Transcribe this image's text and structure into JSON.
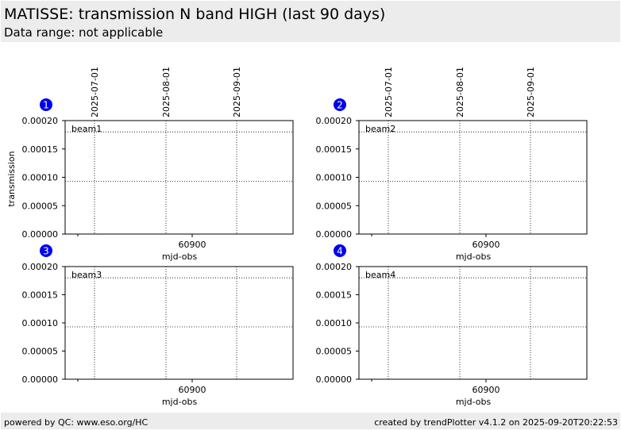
{
  "header": {
    "title": "MATISSE: transmission N band HIGH (last 90 days)",
    "subtitle": "Data range: not applicable"
  },
  "footer": {
    "left": "powered by QC: www.eso.org/HC",
    "right": "created by trendPlotter v4.1.2 on 2025-09-20T20:22:53"
  },
  "colors": {
    "badge": "#0000ee",
    "header_bg": "#ececec"
  },
  "chart_data": [
    {
      "type": "scatter",
      "badge": "1",
      "beam_label": "beam1",
      "xlabel": "mjd-obs",
      "ylabel": "transmission",
      "xlim": [
        60815,
        60911
      ],
      "ylim": [
        0,
        0.0002
      ],
      "yticks": [
        0,
        5e-05,
        0.0001,
        0.00015,
        0.0002
      ],
      "ytick_labels": [
        "0.00000",
        "0.00005",
        "0.00010",
        "0.00015",
        "0.00020"
      ],
      "xticks": [
        60900
      ],
      "xtick_labels": [
        "60900"
      ],
      "date_ticks": [
        {
          "mjd": 60857,
          "label": "2025-07-01"
        },
        {
          "mjd": 60888,
          "label": "2025-08-01"
        },
        {
          "mjd": 60919,
          "label": "2025-09-01"
        }
      ],
      "reference_lines": [
        0.00018,
        9.3e-05
      ],
      "series": []
    },
    {
      "type": "scatter",
      "badge": "2",
      "beam_label": "beam2",
      "xlabel": "mjd-obs",
      "ylabel": "",
      "xlim": [
        60815,
        60911
      ],
      "ylim": [
        0,
        0.0002
      ],
      "yticks": [
        0,
        5e-05,
        0.0001,
        0.00015,
        0.0002
      ],
      "ytick_labels": [
        "0.00000",
        "0.00005",
        "0.00010",
        "0.00015",
        "0.00020"
      ],
      "xticks": [
        60900
      ],
      "xtick_labels": [
        "60900"
      ],
      "date_ticks": [
        {
          "mjd": 60857,
          "label": "2025-07-01"
        },
        {
          "mjd": 60888,
          "label": "2025-08-01"
        },
        {
          "mjd": 60919,
          "label": "2025-09-01"
        }
      ],
      "reference_lines": [
        0.00018,
        9.3e-05
      ],
      "series": []
    },
    {
      "type": "scatter",
      "badge": "3",
      "beam_label": "beam3",
      "xlabel": "mjd-obs",
      "ylabel": "",
      "xlim": [
        60815,
        60911
      ],
      "ylim": [
        0,
        0.0002
      ],
      "yticks": [
        0,
        5e-05,
        0.0001,
        0.00015,
        0.0002
      ],
      "ytick_labels": [
        "0.00000",
        "0.00005",
        "0.00010",
        "0.00015",
        "0.00020"
      ],
      "xticks": [
        60900
      ],
      "xtick_labels": [
        "60900"
      ],
      "date_ticks": [],
      "reference_lines": [
        0.00018,
        9.3e-05
      ],
      "series": []
    },
    {
      "type": "scatter",
      "badge": "4",
      "beam_label": "beam4",
      "xlabel": "mjd-obs",
      "ylabel": "",
      "xlim": [
        60815,
        60911
      ],
      "ylim": [
        0,
        0.0002
      ],
      "yticks": [
        0,
        5e-05,
        0.0001,
        0.00015,
        0.0002
      ],
      "ytick_labels": [
        "0.00000",
        "0.00005",
        "0.00010",
        "0.00015",
        "0.00020"
      ],
      "xticks": [
        60900
      ],
      "xtick_labels": [
        "60900"
      ],
      "date_ticks": [],
      "reference_lines": [
        0.00018,
        9.3e-05
      ],
      "series": []
    }
  ]
}
